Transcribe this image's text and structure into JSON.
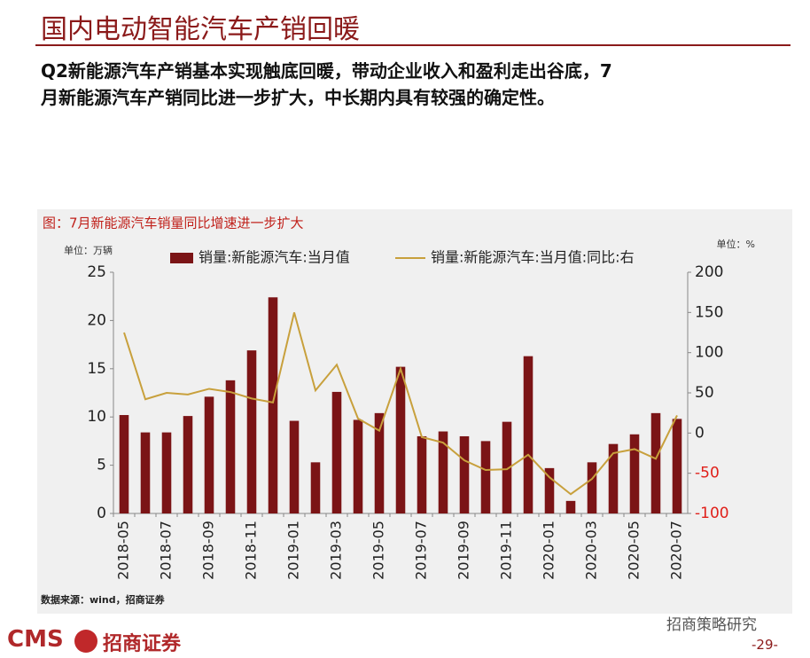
{
  "header": {
    "title": "国内电动智能汽车产销回暖",
    "subtitle_lines": [
      "Q2新能源汽车产销基本实现触底回暖，带动企业收入和盈利走出谷底，7",
      "月新能源汽车产销同比进一步扩大，中长期内具有较强的确定性。"
    ]
  },
  "chart_data": {
    "type": "bar_line",
    "title": "图：7月新能源汽车销量同比增速进一步扩大",
    "y_unit": "单位：万辆",
    "y2_unit": "单位：%",
    "categories": [
      "2018-05",
      null,
      "2018-07",
      null,
      "2018-09",
      null,
      "2018-11",
      null,
      "2019-01",
      null,
      "2019-03",
      null,
      "2019-05",
      null,
      "2019-07",
      null,
      "2019-09",
      null,
      "2019-11",
      null,
      "2020-01",
      null,
      "2020-03",
      null,
      "2020-05",
      null,
      "2020-07"
    ],
    "series": [
      {
        "name": "销量:新能源汽车:当月值",
        "type": "bar",
        "color": "#7b1416",
        "values": [
          10.2,
          8.4,
          8.4,
          10.1,
          12.1,
          13.8,
          16.9,
          22.4,
          9.6,
          5.3,
          12.6,
          9.7,
          10.4,
          15.2,
          8.0,
          8.5,
          8.0,
          7.5,
          9.5,
          16.3,
          4.7,
          1.3,
          5.3,
          7.2,
          8.2,
          10.4,
          9.8
        ]
      },
      {
        "name": "销量:新能源汽车:当月值:同比:右",
        "type": "line",
        "axis": "y2",
        "color": "#c8a03c",
        "values": [
          125,
          42,
          50,
          48,
          55,
          51,
          43,
          38,
          150,
          53,
          85,
          18,
          3,
          80,
          -5,
          -12,
          -34,
          -46,
          -45,
          -27,
          -55,
          -76,
          -57,
          -25,
          -20,
          -32,
          22
        ]
      }
    ],
    "ylim": [
      0,
      25
    ],
    "yticks": [
      0,
      5,
      10,
      15,
      20,
      25
    ],
    "y2lim": [
      -100,
      200
    ],
    "y2ticks": [
      -100,
      -50,
      0,
      50,
      100,
      150,
      200
    ],
    "negative_tick_color": "#e0201a",
    "source": "数据来源：wind，招商证券"
  },
  "footer": {
    "logo": "CMS",
    "company": "招商证券",
    "watermark": "招商策略研究",
    "page": "-29-"
  }
}
